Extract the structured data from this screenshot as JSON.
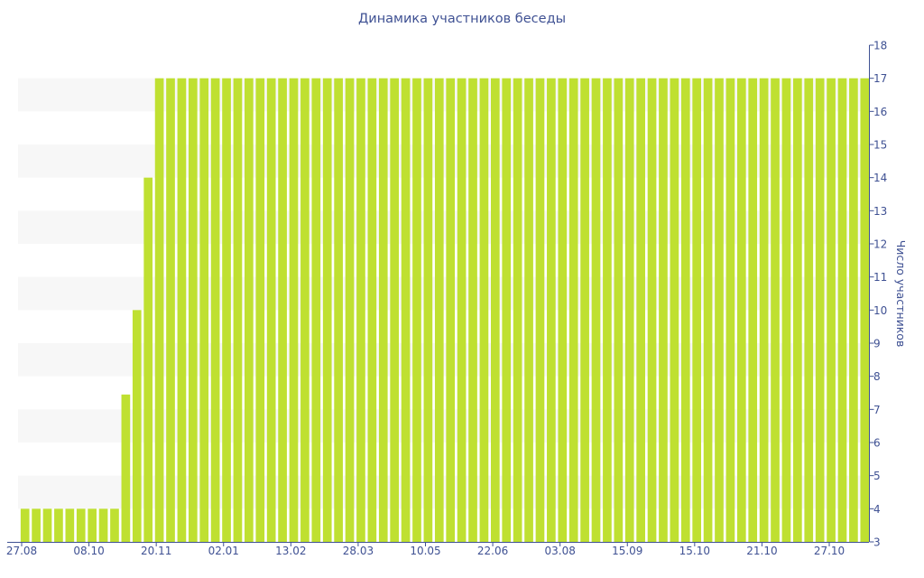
{
  "chart_data": {
    "type": "bar",
    "title": "Динамика участников беседы",
    "xlabel": "",
    "ylabel": "Число участников",
    "ylim": [
      3,
      18
    ],
    "yticks": [
      3,
      4,
      5,
      6,
      7,
      8,
      9,
      10,
      11,
      12,
      13,
      14,
      15,
      16,
      17,
      18
    ],
    "y_axis_side": "right",
    "grid": "alternating horizontal bands",
    "legend": "none",
    "bar_color": "#bfe031",
    "band_color": "#f7f7f7",
    "axis_color": "#3f5193",
    "xticks": [
      "27.08",
      "08.10",
      "20.11",
      "02.01",
      "13.02",
      "28.03",
      "10.05",
      "22.06",
      "03.08",
      "15.09",
      "15.10",
      "21.10",
      "27.10"
    ],
    "values": [
      4,
      4,
      4,
      4,
      4,
      4,
      4,
      4,
      4,
      7.45,
      10,
      14,
      17,
      17,
      17,
      17,
      17,
      17,
      17,
      17,
      17,
      17,
      17,
      17,
      17,
      17,
      17,
      17,
      17,
      17,
      17,
      17,
      17,
      17,
      17,
      17,
      17,
      17,
      17,
      17,
      17,
      17,
      17,
      17,
      17,
      17,
      17,
      17,
      17,
      17,
      17,
      17,
      17,
      17,
      17,
      17,
      17,
      17,
      17,
      17,
      17,
      17,
      17,
      17,
      17,
      17,
      17,
      17,
      17,
      17,
      17,
      17,
      17,
      17,
      17,
      17
    ]
  }
}
